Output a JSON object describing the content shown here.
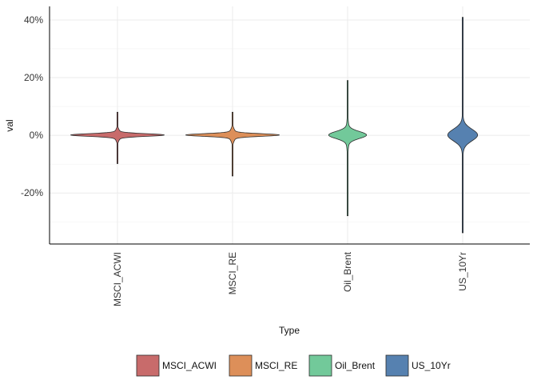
{
  "chart_data": {
    "type": "violin",
    "xlabel": "Type",
    "ylabel": "val",
    "categories": [
      "MSCI_ACWI",
      "MSCI_RE",
      "Oil_Brent",
      "US_10Yr"
    ],
    "y_ticks": [
      -20,
      0,
      20,
      40
    ],
    "y_tick_labels": [
      "-20%",
      "0%",
      "20%",
      "40%"
    ],
    "ylim": [
      -37.7,
      44.7
    ],
    "grid": true,
    "legend_position": "bottom",
    "series": [
      {
        "category": "MSCI_ACWI",
        "color": "#C86B6B",
        "min": -9.8,
        "max": 8.0,
        "center": 0.1,
        "core_half_width": 0.47,
        "core_sd": 0.45,
        "tail_sd": 1.4
      },
      {
        "category": "MSCI_RE",
        "color": "#DD8F59",
        "min": -14.1,
        "max": 8.0,
        "center": 0.1,
        "core_half_width": 0.47,
        "core_sd": 0.45,
        "tail_sd": 1.6
      },
      {
        "category": "Oil_Brent",
        "color": "#72C99A",
        "min": -27.9,
        "max": 19.0,
        "center": 0.1,
        "core_half_width": 0.19,
        "core_sd": 1.2,
        "tail_sd": 3.8
      },
      {
        "category": "US_10Yr",
        "color": "#5681B0",
        "min": -33.8,
        "max": 40.9,
        "center": 0.1,
        "core_half_width": 0.15,
        "core_sd": 2.0,
        "tail_sd": 4.5
      }
    ]
  }
}
